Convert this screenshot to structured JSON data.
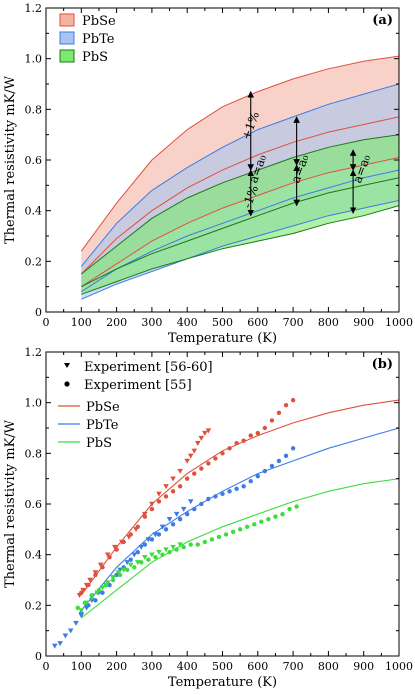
{
  "chart_data": [
    {
      "type": "area",
      "panel_label": "(a)",
      "xlabel": "Temperature (K)",
      "ylabel": "Thermal resistivity mK/W",
      "xlim": [
        0,
        1000
      ],
      "ylim": [
        0,
        1.2
      ],
      "xticks": [
        0,
        100,
        200,
        300,
        400,
        500,
        600,
        700,
        800,
        900,
        1000
      ],
      "yticks": [
        0,
        0.2,
        0.4,
        0.6,
        0.8,
        1.0,
        1.2
      ],
      "x": [
        100,
        200,
        300,
        400,
        500,
        600,
        700,
        800,
        900,
        1000
      ],
      "legend": {
        "position": "top-left",
        "entries": [
          "PbSe",
          "PbTe",
          "PbS"
        ]
      },
      "series": [
        {
          "name": "PbSe",
          "color": "#e0503c",
          "fill": "#f4b4a4",
          "upper": [
            0.24,
            0.43,
            0.6,
            0.72,
            0.81,
            0.87,
            0.92,
            0.96,
            0.99,
            1.01
          ],
          "center": [
            0.15,
            0.29,
            0.4,
            0.49,
            0.56,
            0.62,
            0.67,
            0.71,
            0.74,
            0.77
          ],
          "lower": [
            0.1,
            0.19,
            0.28,
            0.35,
            0.41,
            0.46,
            0.51,
            0.55,
            0.58,
            0.61
          ]
        },
        {
          "name": "PbTe",
          "color": "#3c7ce6",
          "fill": "#a8c4f0",
          "upper": [
            0.18,
            0.35,
            0.48,
            0.57,
            0.65,
            0.72,
            0.77,
            0.82,
            0.86,
            0.9
          ],
          "center": [
            0.08,
            0.17,
            0.24,
            0.3,
            0.35,
            0.4,
            0.45,
            0.49,
            0.53,
            0.56
          ],
          "lower": [
            0.05,
            0.11,
            0.16,
            0.21,
            0.26,
            0.3,
            0.34,
            0.38,
            0.41,
            0.44
          ]
        },
        {
          "name": "PbS",
          "color": "#1a7a1a",
          "fill": "#7ce86c",
          "upper": [
            0.15,
            0.26,
            0.37,
            0.45,
            0.51,
            0.56,
            0.61,
            0.65,
            0.68,
            0.7
          ],
          "center": [
            0.1,
            0.17,
            0.23,
            0.28,
            0.33,
            0.38,
            0.43,
            0.47,
            0.5,
            0.53
          ],
          "lower": [
            0.07,
            0.12,
            0.17,
            0.21,
            0.25,
            0.28,
            0.31,
            0.35,
            0.38,
            0.42
          ]
        }
      ],
      "annotations": [
        {
          "text": "+1%",
          "x": 590,
          "y": 0.73
        },
        {
          "text": "-1%",
          "x": 590,
          "y": 0.45
        },
        {
          "text": "a=a₀",
          "x": 610,
          "y": 0.56
        },
        {
          "text": "a=a₀",
          "x": 730,
          "y": 0.56
        },
        {
          "text": "a=a₀",
          "x": 905,
          "y": 0.56
        }
      ],
      "arrows": [
        {
          "x": 580,
          "y_top": 0.87,
          "y_bottom": 0.56,
          "y_low": 0.38
        },
        {
          "x": 710,
          "y_top": 0.77,
          "y_bottom": 0.58,
          "y_low": 0.42
        },
        {
          "x": 870,
          "y_top": 0.64,
          "y_bottom": 0.56,
          "y_low": 0.39
        }
      ]
    },
    {
      "type": "scatter",
      "panel_label": "(b)",
      "xlabel": "Temperature (K)",
      "ylabel": "Thermal resistivity mK/W",
      "xlim": [
        0,
        1000
      ],
      "ylim": [
        0,
        1.2
      ],
      "xticks": [
        0,
        100,
        200,
        300,
        400,
        500,
        600,
        700,
        800,
        900,
        1000
      ],
      "yticks": [
        0,
        0.2,
        0.4,
        0.6,
        0.8,
        1.0,
        1.2
      ],
      "legend": {
        "position": "top-left",
        "entries": [
          "Experiment [56-60]",
          "Experiment [55]",
          "PbSe",
          "PbTe",
          "PbS"
        ]
      },
      "lines": [
        {
          "name": "PbSe",
          "color": "#e0503c",
          "x": [
            100,
            200,
            300,
            400,
            500,
            600,
            700,
            800,
            900,
            1000
          ],
          "y": [
            0.24,
            0.43,
            0.6,
            0.72,
            0.81,
            0.87,
            0.92,
            0.96,
            0.99,
            1.01
          ]
        },
        {
          "name": "PbTe",
          "color": "#3c7ce6",
          "x": [
            100,
            200,
            300,
            400,
            500,
            600,
            700,
            800,
            900,
            1000
          ],
          "y": [
            0.18,
            0.35,
            0.48,
            0.57,
            0.65,
            0.72,
            0.77,
            0.82,
            0.86,
            0.9
          ]
        },
        {
          "name": "PbS",
          "color": "#3ddc3d",
          "x": [
            100,
            200,
            300,
            400,
            500,
            600,
            700,
            800,
            900,
            1000
          ],
          "y": [
            0.15,
            0.26,
            0.37,
            0.45,
            0.51,
            0.56,
            0.61,
            0.65,
            0.68,
            0.7
          ]
        }
      ],
      "points": [
        {
          "material": "PbSe",
          "marker": "triangle",
          "color": "#e0503c",
          "x": [
            95,
            105,
            115,
            125,
            140,
            155,
            175,
            195,
            215,
            235,
            255,
            280,
            300,
            320,
            340,
            360,
            380,
            400,
            410,
            420,
            430,
            440,
            450,
            460
          ],
          "y": [
            0.24,
            0.26,
            0.28,
            0.3,
            0.33,
            0.36,
            0.4,
            0.43,
            0.45,
            0.47,
            0.5,
            0.56,
            0.6,
            0.64,
            0.67,
            0.7,
            0.73,
            0.77,
            0.79,
            0.81,
            0.84,
            0.86,
            0.88,
            0.89
          ]
        },
        {
          "material": "PbSe",
          "marker": "circle",
          "color": "#e0503c",
          "x": [
            100,
            120,
            140,
            160,
            180,
            200,
            220,
            240,
            260,
            280,
            300,
            320,
            340,
            360,
            380,
            400,
            420,
            440,
            460,
            480,
            500,
            520,
            540,
            560,
            580,
            600,
            620,
            640,
            660,
            680,
            700
          ],
          "y": [
            0.25,
            0.28,
            0.32,
            0.35,
            0.39,
            0.42,
            0.45,
            0.48,
            0.51,
            0.55,
            0.58,
            0.61,
            0.63,
            0.65,
            0.67,
            0.7,
            0.72,
            0.74,
            0.76,
            0.78,
            0.8,
            0.82,
            0.84,
            0.85,
            0.87,
            0.88,
            0.9,
            0.93,
            0.96,
            0.99,
            1.01
          ]
        },
        {
          "material": "PbTe",
          "marker": "triangle",
          "color": "#3c7ce6",
          "x": [
            25,
            40,
            55,
            70,
            85,
            100,
            115,
            130,
            150,
            170,
            190,
            210,
            230,
            250,
            270,
            290,
            310,
            330,
            350,
            370,
            390,
            410
          ],
          "y": [
            0.04,
            0.05,
            0.08,
            0.1,
            0.13,
            0.16,
            0.19,
            0.22,
            0.25,
            0.28,
            0.31,
            0.34,
            0.37,
            0.4,
            0.43,
            0.46,
            0.48,
            0.51,
            0.54,
            0.56,
            0.58,
            0.61
          ]
        },
        {
          "material": "PbTe",
          "marker": "circle",
          "color": "#3c7ce6",
          "x": [
            100,
            120,
            140,
            160,
            180,
            200,
            220,
            240,
            260,
            280,
            300,
            320,
            340,
            360,
            380,
            400,
            420,
            440,
            460,
            480,
            500,
            520,
            540,
            560,
            580,
            600,
            620,
            640,
            660,
            680,
            700
          ],
          "y": [
            0.17,
            0.2,
            0.22,
            0.25,
            0.28,
            0.32,
            0.35,
            0.38,
            0.41,
            0.44,
            0.46,
            0.48,
            0.5,
            0.52,
            0.54,
            0.56,
            0.58,
            0.6,
            0.62,
            0.63,
            0.64,
            0.65,
            0.66,
            0.67,
            0.69,
            0.71,
            0.73,
            0.75,
            0.77,
            0.79,
            0.82
          ]
        },
        {
          "material": "PbS",
          "marker": "triangle",
          "color": "#3ddc3d",
          "x": [
            100,
            115,
            130,
            145,
            160,
            175,
            190,
            205,
            220,
            240,
            260,
            280,
            300,
            320,
            340,
            360,
            380
          ],
          "y": [
            0.18,
            0.21,
            0.23,
            0.25,
            0.27,
            0.29,
            0.31,
            0.33,
            0.34,
            0.36,
            0.37,
            0.39,
            0.4,
            0.41,
            0.42,
            0.43,
            0.44
          ]
        },
        {
          "material": "PbS",
          "marker": "circle",
          "color": "#3ddc3d",
          "x": [
            90,
            110,
            130,
            150,
            170,
            190,
            210,
            230,
            250,
            270,
            290,
            310,
            330,
            350,
            370,
            390,
            410,
            430,
            450,
            470,
            490,
            510,
            530,
            550,
            570,
            590,
            610,
            630,
            650,
            670,
            690,
            710
          ],
          "y": [
            0.19,
            0.21,
            0.24,
            0.26,
            0.28,
            0.3,
            0.32,
            0.34,
            0.35,
            0.37,
            0.38,
            0.39,
            0.4,
            0.41,
            0.42,
            0.43,
            0.44,
            0.44,
            0.45,
            0.46,
            0.47,
            0.48,
            0.49,
            0.5,
            0.51,
            0.52,
            0.53,
            0.54,
            0.55,
            0.56,
            0.58,
            0.59
          ]
        }
      ]
    }
  ]
}
